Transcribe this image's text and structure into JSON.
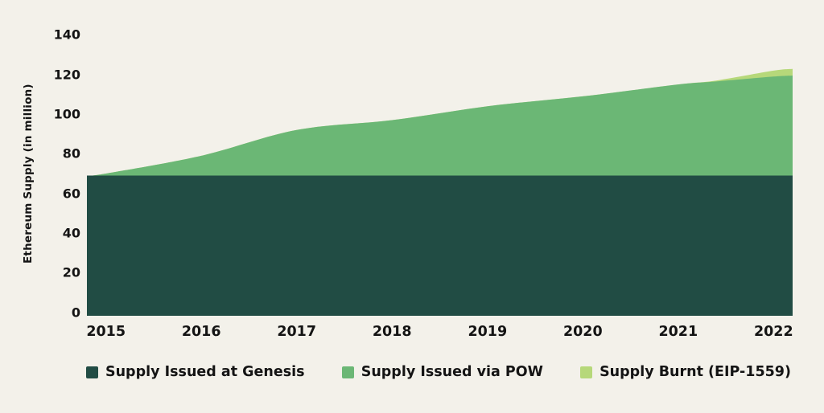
{
  "background": "#f3f1ea",
  "text_color": "#141414",
  "chart_data": {
    "type": "area",
    "stacked": true,
    "title": "",
    "xlabel": "",
    "ylabel": "Ethereum Supply (in million)",
    "x_tick_labels": [
      "2015",
      "2016",
      "2017",
      "2018",
      "2019",
      "2020",
      "2021",
      "2022"
    ],
    "x_tick_years": [
      2015,
      2016,
      2017,
      2018,
      2019,
      2020,
      2021,
      2022
    ],
    "y_ticks": [
      0,
      20,
      40,
      60,
      80,
      100,
      120,
      140
    ],
    "ylim": [
      0,
      140
    ],
    "x_range": [
      2014.8,
      2022.2
    ],
    "grid": false,
    "legend_position": "bottom",
    "x": [
      2014.8,
      2015,
      2016,
      2017,
      2018,
      2019,
      2020,
      2021,
      2021.4,
      2022,
      2022.2
    ],
    "series": [
      {
        "name": "Supply Issued at Genesis",
        "color": "#214c44",
        "values": [
          70,
          70,
          70,
          70,
          70,
          70,
          70,
          70,
          70,
          70,
          70
        ]
      },
      {
        "name": "Supply Issued via POW",
        "color": "#6bb775",
        "values": [
          0,
          1,
          10,
          23,
          28,
          35,
          40,
          46,
          47.5,
          50,
          50.5
        ]
      },
      {
        "name": "Supply Burnt (EIP-1559)",
        "color": "#b6d87a",
        "values": [
          0,
          0,
          0,
          0,
          0,
          0,
          0,
          0,
          0.5,
          3,
          3.4
        ]
      }
    ]
  }
}
